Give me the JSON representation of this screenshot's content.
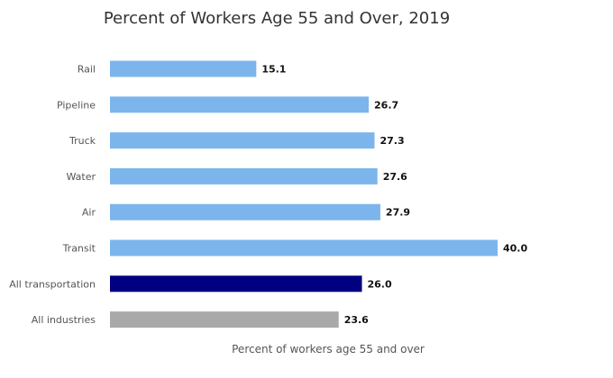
{
  "chart_data": {
    "type": "bar",
    "orientation": "horizontal",
    "title": "Percent of Workers Age 55 and Over, 2019",
    "xlabel": "Percent of workers age 55 and over",
    "ylabel": "",
    "xlim": [
      0,
      45
    ],
    "grid": false,
    "legend": "none",
    "categories": [
      "Rail",
      "Pipeline",
      "Truck",
      "Water",
      "Air",
      "Transit",
      "All transportation",
      "All industries"
    ],
    "values": [
      15.1,
      26.7,
      27.3,
      27.6,
      27.9,
      40.0,
      26.0,
      23.6
    ],
    "value_labels": [
      "15.1",
      "26.7",
      "27.3",
      "27.6",
      "27.9",
      "40.0",
      "26.0",
      "23.6"
    ],
    "bar_colors": [
      "#7cb5ec",
      "#7cb5ec",
      "#7cb5ec",
      "#7cb5ec",
      "#7cb5ec",
      "#7cb5ec",
      "#000080",
      "#a9a9a9"
    ]
  }
}
